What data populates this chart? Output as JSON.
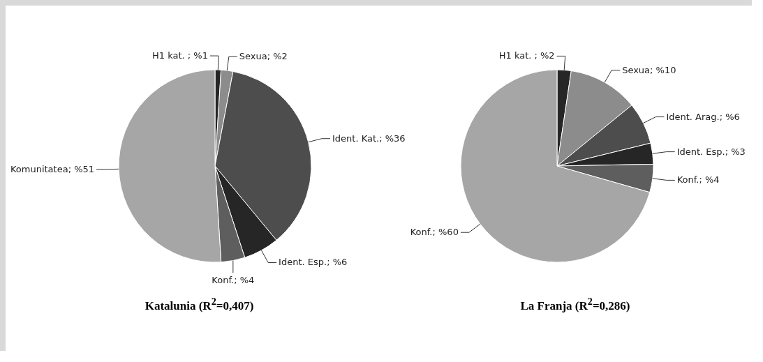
{
  "chart_data": [
    {
      "type": "pie",
      "title": "Katalunia (R$^{2}$=0,407)",
      "categories": [
        "H1 kat. ",
        "Sexua",
        "Ident. Kat.",
        "Ident. Esp.",
        "Konf.",
        "Komunitatea"
      ],
      "values": [
        1,
        2,
        36,
        6,
        4,
        51
      ],
      "value_labels": [
        "%1",
        "%2",
        "%36",
        "%6",
        "%4",
        "%51"
      ],
      "colors": [
        "#262626",
        "#8c8c8c",
        "#4d4d4d",
        "#262626",
        "#5e5e5e",
        "#a6a6a6"
      ]
    },
    {
      "type": "pie",
      "title": "La Franja  (R$^{2}$=0,286)",
      "categories": [
        "H1 kat. ",
        "Sexua",
        "Ident. Arag.",
        "Ident. Esp.",
        "Konf.",
        "Konf."
      ],
      "values": [
        2,
        10,
        6,
        3,
        4,
        60
      ],
      "value_labels": [
        "%2",
        "%10",
        "%6",
        "%3",
        "%4",
        "%60"
      ],
      "colors": [
        "#262626",
        "#8c8c8c",
        "#4d4d4d",
        "#262626",
        "#5e5e5e",
        "#a6a6a6"
      ]
    }
  ]
}
